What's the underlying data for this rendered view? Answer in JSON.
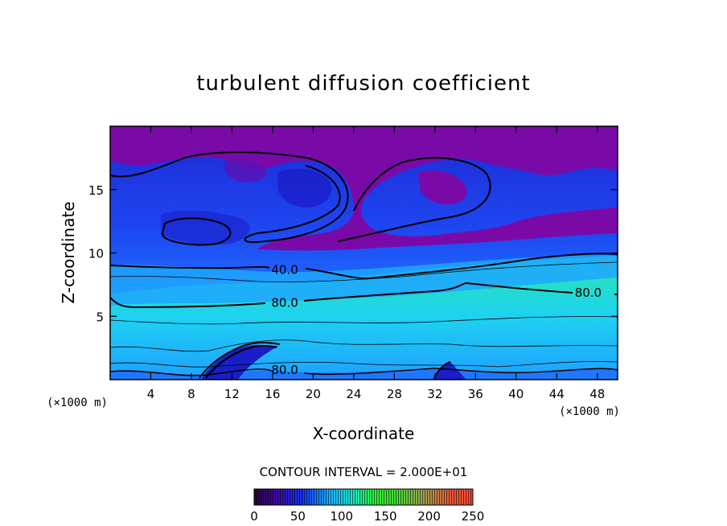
{
  "chart_data": {
    "type": "heatmap",
    "title": "turbulent diffusion coefficient",
    "xlabel": "X-coordinate",
    "ylabel": "Z-coordinate",
    "x_unit": "(×1000 m)",
    "xlim": [
      0,
      50
    ],
    "ylim": [
      0,
      20
    ],
    "x_ticks": [
      4,
      8,
      12,
      16,
      20,
      24,
      28,
      32,
      36,
      40,
      44,
      48
    ],
    "y_ticks": [
      5,
      10,
      15
    ],
    "contour_interval_text": "CONTOUR INTERVAL = 2.000E+01",
    "contour_labels": [
      {
        "text": "40.0",
        "x": 17.2,
        "z": 8.6
      },
      {
        "text": "80.0",
        "x": 17.2,
        "z": 6.0
      },
      {
        "text": "80.0",
        "x": 47.1,
        "z": 6.8
      },
      {
        "text": "80.0",
        "x": 17.2,
        "z": 0.7
      }
    ],
    "colorbar": {
      "min": 0,
      "max": 250,
      "tick_labels": [
        "0",
        "50",
        "100",
        "150",
        "200",
        "250"
      ]
    },
    "colors": {
      "purple": "#7a0aa8",
      "blue": "#1432e6",
      "cyan": "#1ec8ff",
      "green": "#3ce632"
    }
  }
}
